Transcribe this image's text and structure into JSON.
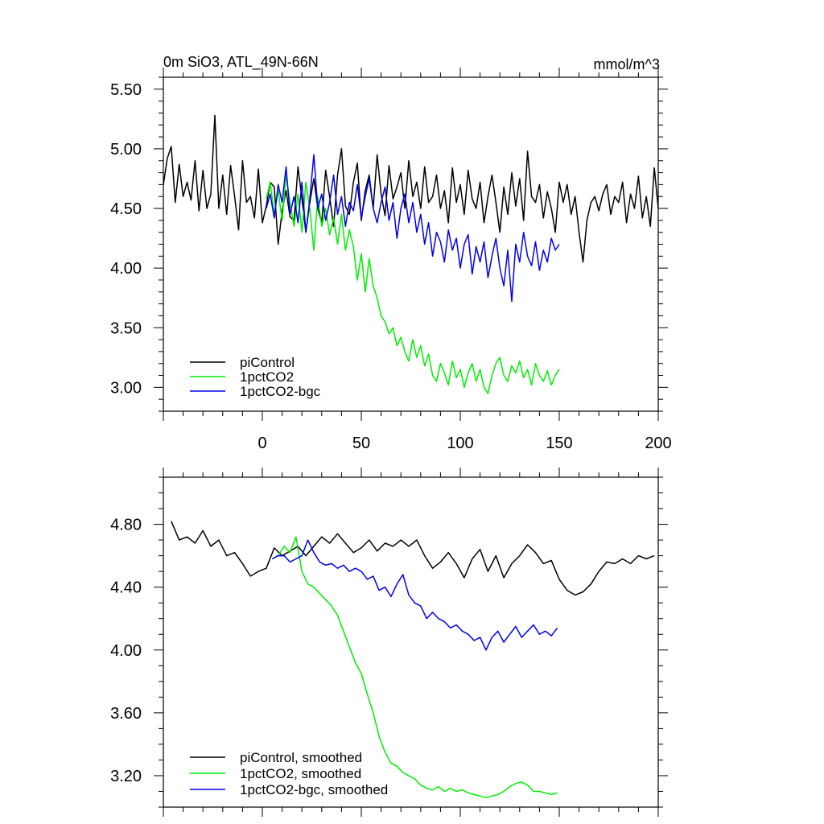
{
  "chart_data": [
    {
      "type": "line",
      "title": "0m SiO3, ATL_49N-66N",
      "units": "mmol/m^3",
      "xlim": [
        -50,
        200
      ],
      "ylim": [
        2.8,
        5.6
      ],
      "x_ticks": [
        0,
        50,
        100,
        150,
        200
      ],
      "x_tick_labels": [
        "0",
        "50",
        "100",
        "150",
        "200"
      ],
      "y_ticks": [
        3.0,
        3.5,
        4.0,
        4.5,
        5.0,
        5.5
      ],
      "y_tick_labels": [
        "3.00",
        "3.50",
        "4.00",
        "4.50",
        "5.00",
        "5.50"
      ],
      "grid": false,
      "legend_position": "bottom-left",
      "series": [
        {
          "name": "piControl",
          "color": "#000000",
          "x": [
            -50,
            -48,
            -46,
            -44,
            -42,
            -40,
            -38,
            -36,
            -34,
            -32,
            -30,
            -28,
            -26,
            -24,
            -22,
            -20,
            -18,
            -16,
            -14,
            -12,
            -10,
            -8,
            -6,
            -4,
            -2,
            0,
            2,
            4,
            6,
            8,
            10,
            12,
            14,
            16,
            18,
            20,
            22,
            24,
            26,
            28,
            30,
            32,
            34,
            36,
            38,
            40,
            42,
            44,
            46,
            48,
            50,
            52,
            54,
            56,
            58,
            60,
            62,
            64,
            66,
            68,
            70,
            72,
            74,
            76,
            78,
            80,
            82,
            84,
            86,
            88,
            90,
            92,
            94,
            96,
            98,
            100,
            102,
            104,
            106,
            108,
            110,
            112,
            114,
            116,
            118,
            120,
            122,
            124,
            126,
            128,
            130,
            132,
            134,
            136,
            138,
            140,
            142,
            144,
            146,
            148,
            150,
            152,
            154,
            156,
            158,
            160,
            162,
            164,
            166,
            168,
            170,
            172,
            174,
            176,
            178,
            180,
            182,
            184,
            186,
            188,
            190,
            192,
            194,
            196,
            198,
            200
          ],
          "y": [
            4.7,
            4.92,
            5.02,
            4.55,
            4.87,
            4.6,
            4.72,
            4.57,
            4.9,
            4.48,
            4.82,
            4.5,
            4.62,
            5.28,
            4.5,
            4.78,
            4.45,
            4.86,
            4.6,
            4.32,
            4.9,
            4.55,
            4.6,
            4.42,
            4.83,
            4.38,
            4.52,
            4.72,
            4.68,
            4.2,
            4.48,
            4.65,
            4.43,
            4.4,
            4.85,
            4.58,
            4.3,
            4.55,
            4.75,
            4.5,
            4.38,
            4.82,
            4.6,
            4.35,
            4.78,
            5.0,
            4.52,
            4.45,
            4.72,
            4.88,
            4.4,
            4.65,
            4.78,
            4.5,
            4.95,
            4.62,
            4.44,
            4.86,
            4.58,
            4.68,
            4.8,
            4.5,
            4.9,
            4.6,
            4.72,
            4.5,
            4.85,
            4.55,
            4.6,
            4.78,
            4.5,
            4.65,
            4.38,
            4.84,
            4.55,
            4.7,
            4.45,
            4.82,
            4.58,
            4.5,
            4.72,
            4.38,
            4.6,
            4.78,
            4.55,
            4.3,
            4.68,
            4.45,
            4.8,
            4.52,
            4.75,
            4.4,
            4.98,
            4.6,
            4.55,
            4.7,
            4.42,
            4.64,
            4.5,
            4.3,
            4.72,
            4.55,
            4.7,
            4.45,
            4.6,
            4.3,
            4.05,
            4.4,
            4.55,
            4.6,
            4.48,
            4.62,
            4.7,
            4.45,
            4.6,
            4.55,
            4.72,
            4.38,
            4.62,
            4.5,
            4.77,
            4.42,
            4.6,
            4.35,
            4.84,
            4.5
          ]
        },
        {
          "name": "1pctCO2",
          "color": "#00ee00",
          "x": [
            2,
            4,
            6,
            8,
            10,
            12,
            14,
            16,
            18,
            20,
            22,
            24,
            26,
            28,
            30,
            32,
            34,
            36,
            38,
            40,
            42,
            44,
            46,
            48,
            50,
            52,
            54,
            56,
            58,
            60,
            62,
            64,
            66,
            68,
            70,
            72,
            74,
            76,
            78,
            80,
            82,
            84,
            86,
            88,
            90,
            92,
            94,
            96,
            98,
            100,
            102,
            104,
            106,
            108,
            110,
            112,
            114,
            116,
            118,
            120,
            122,
            124,
            126,
            128,
            130,
            132,
            134,
            136,
            138,
            140,
            142,
            144,
            146,
            148,
            150
          ],
          "y": [
            4.58,
            4.72,
            4.45,
            4.65,
            4.4,
            4.78,
            4.55,
            4.35,
            4.62,
            4.3,
            4.72,
            4.5,
            4.15,
            4.6,
            4.35,
            4.5,
            4.28,
            4.42,
            4.2,
            4.45,
            4.15,
            4.32,
            4.18,
            3.9,
            4.12,
            3.8,
            4.08,
            3.85,
            3.75,
            3.6,
            3.55,
            3.45,
            3.5,
            3.35,
            3.42,
            3.3,
            3.22,
            3.4,
            3.25,
            3.35,
            3.18,
            3.28,
            3.1,
            3.05,
            3.2,
            3.12,
            3.02,
            3.22,
            3.08,
            3.15,
            3.0,
            3.12,
            3.2,
            3.05,
            3.15,
            3.0,
            2.95,
            3.1,
            3.2,
            3.25,
            3.1,
            3.05,
            3.18,
            3.12,
            3.22,
            3.08,
            3.15,
            3.02,
            3.2,
            3.1,
            3.05,
            3.14,
            3.02,
            3.1,
            3.15
          ]
        },
        {
          "name": "1pctCO2-bgc",
          "color": "#0000ee",
          "x": [
            2,
            4,
            6,
            8,
            10,
            12,
            14,
            16,
            18,
            20,
            22,
            24,
            26,
            28,
            30,
            32,
            34,
            36,
            38,
            40,
            42,
            44,
            46,
            48,
            50,
            52,
            54,
            56,
            58,
            60,
            62,
            64,
            66,
            68,
            70,
            72,
            74,
            76,
            78,
            80,
            82,
            84,
            86,
            88,
            90,
            92,
            94,
            96,
            98,
            100,
            102,
            104,
            106,
            108,
            110,
            112,
            114,
            116,
            118,
            120,
            122,
            124,
            126,
            128,
            130,
            132,
            134,
            136,
            138,
            140,
            142,
            144,
            146,
            148,
            150
          ],
          "y": [
            4.5,
            4.62,
            4.42,
            4.7,
            4.55,
            4.85,
            4.45,
            4.6,
            4.38,
            4.72,
            4.3,
            4.58,
            4.95,
            4.5,
            4.62,
            4.4,
            4.55,
            4.78,
            4.45,
            4.6,
            4.35,
            4.55,
            4.48,
            4.7,
            4.42,
            4.6,
            4.75,
            4.5,
            4.38,
            4.55,
            4.68,
            4.4,
            4.55,
            4.25,
            4.5,
            4.62,
            4.38,
            4.55,
            4.3,
            4.45,
            4.2,
            4.38,
            4.1,
            4.3,
            4.22,
            4.05,
            4.32,
            4.15,
            4.25,
            4.0,
            4.2,
            4.28,
            3.95,
            4.18,
            4.05,
            4.22,
            3.92,
            4.1,
            4.25,
            4.0,
            3.85,
            4.15,
            3.72,
            4.2,
            4.05,
            4.3,
            4.1,
            4.02,
            4.22,
            3.98,
            4.15,
            4.05,
            4.25,
            4.15,
            4.2
          ]
        }
      ]
    },
    {
      "type": "line",
      "xlim": [
        -50,
        200
      ],
      "ylim": [
        3.0,
        5.1
      ],
      "x_ticks": [
        0,
        50,
        100,
        150,
        200
      ],
      "y_ticks": [
        3.2,
        3.6,
        4.0,
        4.4,
        4.8
      ],
      "y_tick_labels": [
        "3.20",
        "3.60",
        "4.00",
        "4.40",
        "4.80"
      ],
      "grid": false,
      "legend_position": "bottom-left",
      "series": [
        {
          "name": "piControl, smoothed",
          "color": "#000000",
          "x": [
            -46,
            -42,
            -38,
            -34,
            -30,
            -26,
            -22,
            -18,
            -14,
            -10,
            -6,
            -2,
            2,
            6,
            10,
            14,
            18,
            22,
            26,
            30,
            34,
            38,
            42,
            46,
            50,
            54,
            58,
            62,
            66,
            70,
            74,
            78,
            82,
            86,
            90,
            94,
            98,
            102,
            106,
            110,
            114,
            118,
            122,
            126,
            130,
            134,
            138,
            142,
            146,
            150,
            154,
            158,
            162,
            166,
            170,
            174,
            178,
            182,
            186,
            190,
            194,
            198
          ],
          "y": [
            4.82,
            4.7,
            4.72,
            4.68,
            4.76,
            4.66,
            4.7,
            4.6,
            4.62,
            4.55,
            4.47,
            4.5,
            4.52,
            4.65,
            4.6,
            4.63,
            4.66,
            4.6,
            4.66,
            4.72,
            4.68,
            4.74,
            4.68,
            4.62,
            4.65,
            4.7,
            4.63,
            4.68,
            4.66,
            4.7,
            4.66,
            4.7,
            4.6,
            4.52,
            4.56,
            4.62,
            4.55,
            4.46,
            4.58,
            4.64,
            4.5,
            4.6,
            4.46,
            4.55,
            4.6,
            4.67,
            4.62,
            4.55,
            4.57,
            4.45,
            4.38,
            4.35,
            4.37,
            4.42,
            4.5,
            4.56,
            4.55,
            4.58,
            4.55,
            4.6,
            4.58,
            4.6
          ]
        },
        {
          "name": "1pctCO2, smoothed",
          "color": "#00ee00",
          "x": [
            5,
            8,
            11,
            14,
            17,
            20,
            23,
            26,
            29,
            32,
            35,
            38,
            41,
            44,
            47,
            50,
            53,
            56,
            59,
            62,
            65,
            68,
            71,
            74,
            77,
            80,
            83,
            86,
            89,
            92,
            95,
            98,
            101,
            104,
            107,
            110,
            113,
            116,
            119,
            122,
            125,
            128,
            131,
            134,
            137,
            140,
            143,
            146,
            149
          ],
          "y": [
            4.58,
            4.6,
            4.66,
            4.62,
            4.72,
            4.5,
            4.42,
            4.4,
            4.36,
            4.32,
            4.28,
            4.22,
            4.12,
            4.02,
            3.92,
            3.85,
            3.72,
            3.6,
            3.45,
            3.35,
            3.28,
            3.26,
            3.22,
            3.2,
            3.18,
            3.14,
            3.12,
            3.11,
            3.13,
            3.1,
            3.12,
            3.1,
            3.11,
            3.09,
            3.08,
            3.07,
            3.06,
            3.07,
            3.08,
            3.1,
            3.13,
            3.15,
            3.16,
            3.14,
            3.1,
            3.1,
            3.09,
            3.08,
            3.09
          ]
        },
        {
          "name": "1pctCO2-bgc, smoothed",
          "color": "#0000ee",
          "x": [
            5,
            8,
            11,
            14,
            17,
            20,
            23,
            26,
            29,
            32,
            35,
            38,
            41,
            44,
            47,
            50,
            53,
            56,
            59,
            62,
            65,
            68,
            71,
            74,
            77,
            80,
            83,
            86,
            89,
            92,
            95,
            98,
            101,
            104,
            107,
            110,
            113,
            116,
            119,
            122,
            125,
            128,
            131,
            134,
            137,
            140,
            143,
            146,
            149
          ],
          "y": [
            4.58,
            4.6,
            4.6,
            4.56,
            4.58,
            4.6,
            4.7,
            4.62,
            4.56,
            4.54,
            4.55,
            4.52,
            4.54,
            4.5,
            4.52,
            4.5,
            4.45,
            4.47,
            4.38,
            4.4,
            4.34,
            4.42,
            4.48,
            4.35,
            4.3,
            4.28,
            4.2,
            4.24,
            4.2,
            4.18,
            4.14,
            4.16,
            4.12,
            4.1,
            4.06,
            4.08,
            4.0,
            4.08,
            4.12,
            4.05,
            4.1,
            4.15,
            4.08,
            4.12,
            4.16,
            4.1,
            4.12,
            4.09,
            4.14
          ]
        }
      ]
    }
  ]
}
